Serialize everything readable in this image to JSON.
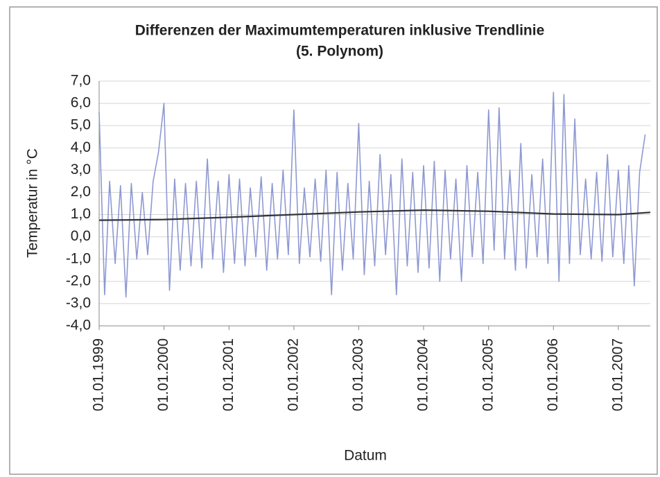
{
  "chart_data": {
    "type": "line",
    "title": "Differenzen der Maximumtemperaturen inklusive Trendlinie",
    "subtitle": "(5. Polynom)",
    "x_label": "Datum",
    "y_label": "Temperatur in °C",
    "xlim": [
      "01.01.1999",
      "30.06.2007"
    ],
    "xticks": [
      "01.01.1999",
      "01.01.2000",
      "01.01.2001",
      "01.01.2002",
      "01.01.2003",
      "01.01.2004",
      "01.01.2005",
      "01.01.2006",
      "01.01.2007"
    ],
    "ylim": [
      -4,
      7
    ],
    "yticks": [
      {
        "value": -4,
        "label": "-4,0"
      },
      {
        "value": -3,
        "label": "-3,0"
      },
      {
        "value": -2,
        "label": "-2,0"
      },
      {
        "value": -1,
        "label": "-1,0"
      },
      {
        "value": 0,
        "label": "0,0"
      },
      {
        "value": 1,
        "label": "1,0"
      },
      {
        "value": 2,
        "label": "2,0"
      },
      {
        "value": 3,
        "label": "3,0"
      },
      {
        "value": 4,
        "label": "4,0"
      },
      {
        "value": 5,
        "label": "5,0"
      },
      {
        "value": 6,
        "label": "6,0"
      },
      {
        "value": 7,
        "label": "7,0"
      }
    ],
    "grid": true,
    "series": [
      {
        "color": "#8e98d2",
        "x": [
          "01.01.1999",
          "01.02.1999",
          "01.03.1999",
          "01.04.1999",
          "01.05.1999",
          "01.06.1999",
          "01.07.1999",
          "01.08.1999",
          "01.09.1999",
          "01.10.1999",
          "01.11.1999",
          "01.12.1999",
          "01.01.2000",
          "01.02.2000",
          "01.03.2000",
          "01.04.2000",
          "01.05.2000",
          "01.06.2000",
          "01.07.2000",
          "01.08.2000",
          "01.09.2000",
          "01.10.2000",
          "01.11.2000",
          "01.12.2000",
          "01.01.2001",
          "01.02.2001",
          "01.03.2001",
          "01.04.2001",
          "01.05.2001",
          "01.06.2001",
          "01.07.2001",
          "01.08.2001",
          "01.09.2001",
          "01.10.2001",
          "01.11.2001",
          "01.12.2001",
          "01.01.2002",
          "01.02.2002",
          "01.03.2002",
          "01.04.2002",
          "01.05.2002",
          "01.06.2002",
          "01.07.2002",
          "01.08.2002",
          "01.09.2002",
          "01.10.2002",
          "01.11.2002",
          "01.12.2002",
          "01.01.2003",
          "01.02.2003",
          "01.03.2003",
          "01.04.2003",
          "01.05.2003",
          "01.06.2003",
          "01.07.2003",
          "01.08.2003",
          "01.09.2003",
          "01.10.2003",
          "01.11.2003",
          "01.12.2003",
          "01.01.2004",
          "01.02.2004",
          "01.03.2004",
          "01.04.2004",
          "01.05.2004",
          "01.06.2004",
          "01.07.2004",
          "01.08.2004",
          "01.09.2004",
          "01.10.2004",
          "01.11.2004",
          "01.12.2004",
          "01.01.2005",
          "01.02.2005",
          "01.03.2005",
          "01.04.2005",
          "01.05.2005",
          "01.06.2005",
          "01.07.2005",
          "01.08.2005",
          "01.09.2005",
          "01.10.2005",
          "01.11.2005",
          "01.12.2005",
          "01.01.2006",
          "01.02.2006",
          "01.03.2006",
          "01.04.2006",
          "01.05.2006",
          "01.06.2006",
          "01.07.2006",
          "01.08.2006",
          "01.09.2006",
          "01.10.2006",
          "01.11.2006",
          "01.12.2006",
          "01.01.2007",
          "01.02.2007",
          "01.03.2007",
          "01.04.2007",
          "01.05.2007",
          "01.06.2007"
        ],
        "values": [
          5.6,
          -2.6,
          2.5,
          -1.2,
          2.3,
          -2.7,
          2.4,
          -1.0,
          2.0,
          -0.8,
          2.5,
          3.8,
          6.0,
          -2.4,
          2.6,
          -1.5,
          2.4,
          -1.3,
          2.5,
          -1.4,
          3.5,
          -1.0,
          2.5,
          -1.6,
          2.8,
          -1.2,
          2.6,
          -1.3,
          2.2,
          -0.9,
          2.7,
          -1.5,
          2.4,
          -1.0,
          3.0,
          -0.8,
          5.7,
          -1.2,
          2.2,
          -0.9,
          2.6,
          -1.1,
          3.0,
          -2.6,
          2.9,
          -1.5,
          2.4,
          -1.0,
          5.1,
          -1.7,
          2.5,
          -1.3,
          3.7,
          -0.8,
          2.8,
          -2.6,
          3.5,
          -1.3,
          2.9,
          -1.6,
          3.2,
          -1.4,
          3.4,
          -2.0,
          3.0,
          -1.0,
          2.6,
          -2.0,
          3.2,
          -0.9,
          2.9,
          -1.2,
          5.7,
          -0.6,
          5.8,
          -1.0,
          3.0,
          -1.5,
          4.2,
          -1.4,
          2.8,
          -0.9,
          3.5,
          -1.2,
          6.5,
          -2.0,
          6.4,
          -1.2,
          5.3,
          -0.8,
          2.6,
          -1.0,
          2.9,
          -1.1,
          3.7,
          -0.9,
          3.0,
          -1.2,
          3.2,
          -2.2,
          2.9,
          4.6
        ]
      },
      {
        "color": "#333333",
        "x": [
          "01.01.1999",
          "01.01.2000",
          "01.01.2001",
          "01.01.2002",
          "01.01.2003",
          "01.01.2004",
          "01.01.2005",
          "01.01.2006",
          "01.01.2007",
          "30.06.2007"
        ],
        "values": [
          0.75,
          0.78,
          0.88,
          1.0,
          1.12,
          1.2,
          1.15,
          1.03,
          1.0,
          1.1
        ]
      }
    ]
  }
}
